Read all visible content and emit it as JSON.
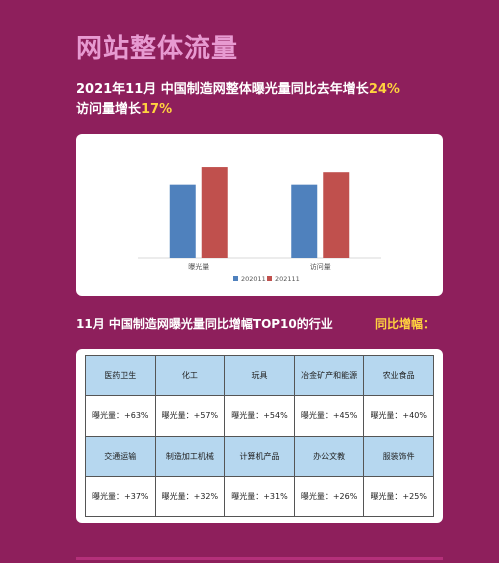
{
  "header": {
    "title": "网站整体流量",
    "line1_prefix": "2021年11月  中国制造网整体曝光量同比去年增长",
    "line1_highlight": "24%",
    "line2_prefix": "访问量增长",
    "line2_highlight": "17%"
  },
  "colors": {
    "background": "#8e1f5c",
    "title": "#e79ad1",
    "highlight": "#ffd23f",
    "series_2020": "#4f81bd",
    "series_2021": "#c0504d",
    "table_header": "#b6d7ef"
  },
  "chart_data": {
    "type": "bar",
    "categories": [
      "曝光量",
      "访问量"
    ],
    "series": [
      {
        "name": "202011",
        "values": [
          1.0,
          1.0
        ]
      },
      {
        "name": "202111",
        "values": [
          1.24,
          1.17
        ]
      }
    ],
    "ylim": [
      0,
      1.5
    ],
    "legend": "bottom",
    "grid": false
  },
  "section": {
    "title": "11月  中国制造网曝光量同比增幅TOP10的行业",
    "extra": "同比增幅："
  },
  "industries": {
    "row1": [
      {
        "name": "医药卫生",
        "value": "曝光量：+63%"
      },
      {
        "name": "化工",
        "value": "曝光量：+57%"
      },
      {
        "name": "玩具",
        "value": "曝光量：+54%"
      },
      {
        "name": "冶金矿产和能源",
        "value": "曝光量：+45%"
      },
      {
        "name": "农业食品",
        "value": "曝光量：+40%"
      }
    ],
    "row2": [
      {
        "name": "交通运输",
        "value": "曝光量：+37%"
      },
      {
        "name": "制造加工机械",
        "value": "曝光量：+32%"
      },
      {
        "name": "计算机产品",
        "value": "曝光量：+31%"
      },
      {
        "name": "办公文教",
        "value": "曝光量：+26%"
      },
      {
        "name": "服装饰件",
        "value": "曝光量：+25%"
      }
    ]
  }
}
